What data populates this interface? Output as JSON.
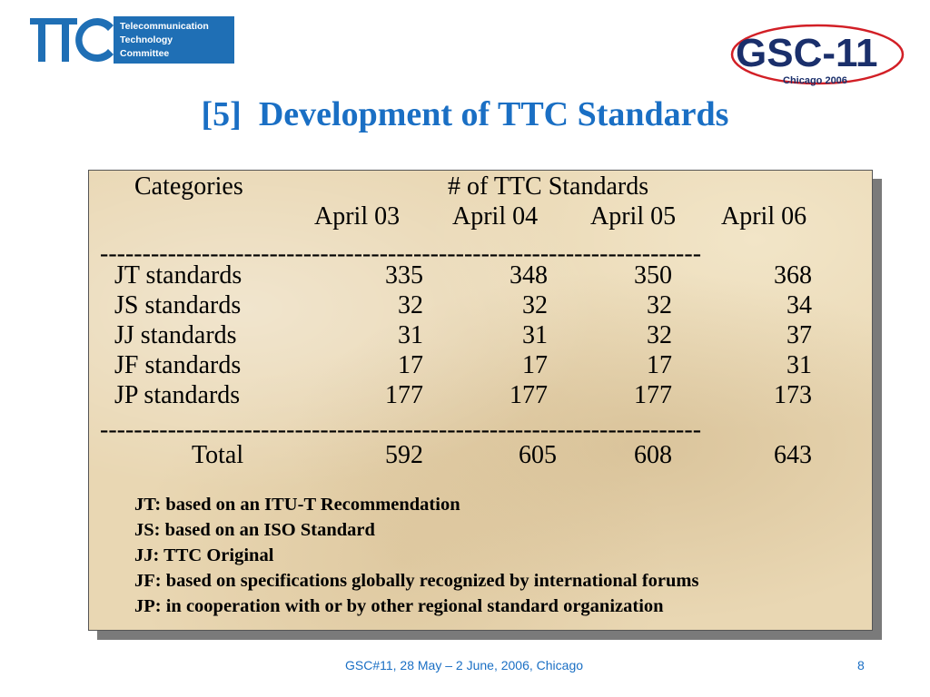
{
  "logos": {
    "ttc": {
      "letters": "TTC",
      "lines": [
        "Telecommunication",
        "Technology",
        "Committee"
      ],
      "color": "#1f6fb5"
    },
    "gsc": {
      "main": "GSC-11",
      "sub": "Chicago 2006",
      "colors": {
        "navy": "#1a2f6b",
        "red": "#d21f26"
      }
    }
  },
  "title": "[5]  Development of TTC Standards",
  "table": {
    "categories_header": "Categories",
    "count_header": "# of TTC Standards",
    "periods": [
      "April 03",
      "April 04",
      "April 05",
      "April 06"
    ],
    "divider": "-----------------------------------------------------------------------",
    "rows": [
      {
        "label": "JT standards",
        "values": [
          "335",
          "348",
          "350",
          "368"
        ]
      },
      {
        "label": "JS standards",
        "values": [
          "32",
          "32",
          "32",
          "34"
        ]
      },
      {
        "label": "JJ standards",
        "values": [
          "31",
          "31",
          "32",
          "37"
        ]
      },
      {
        "label": "JF standards",
        "values": [
          "17",
          "17",
          "17",
          "31"
        ]
      },
      {
        "label": "JP standards",
        "values": [
          "177",
          "177",
          "177",
          "173"
        ]
      }
    ],
    "total": {
      "label": "Total",
      "values": [
        "592",
        "605",
        "608",
        "643"
      ]
    }
  },
  "notes": [
    "JT: based on an ITU-T Recommendation",
    "JS: based on an ISO Standard",
    "JJ: TTC Original",
    "JF: based on specifications globally recognized by international forums",
    "JP: in cooperation with or by other regional standard organization"
  ],
  "footer": {
    "text": "GSC#11, 28 May – 2 June, 2006, Chicago",
    "page": "8"
  },
  "colors": {
    "title": "#1a6fc4",
    "panel": "#e9d7b3"
  }
}
